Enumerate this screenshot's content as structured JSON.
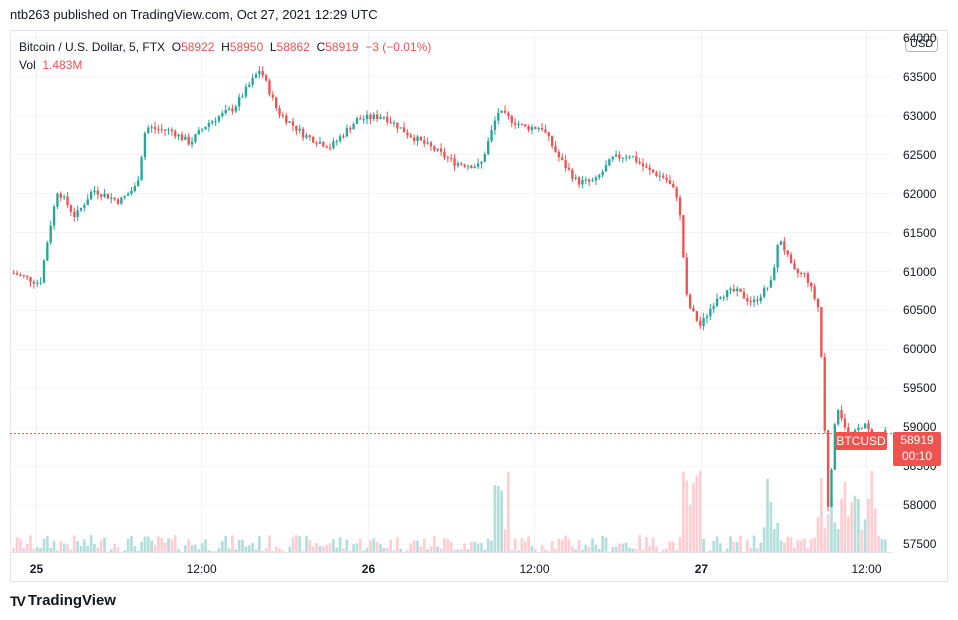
{
  "header": {
    "publish_line": "ntb263 published on TradingView.com, Oct 27, 2021 12:29 UTC"
  },
  "legend": {
    "symbol": "Bitcoin / U.S. Dollar, 5, FTX",
    "open_label": "O",
    "open": "58922",
    "high_label": "H",
    "high": "58950",
    "low_label": "L",
    "low": "58862",
    "close_label": "C",
    "close": "58919",
    "change": "−3 (−0.01%)",
    "vol_label": "Vol",
    "vol": "1.483M"
  },
  "price_axis": {
    "currency": "USD"
  },
  "last_price_tag": {
    "symbol": "BTCUSD",
    "price": "58919",
    "countdown": "00:10"
  },
  "footer": {
    "brand": "TradingView",
    "logo": "TV"
  },
  "colors": {
    "up": "#26a69a",
    "down": "#ef5350",
    "grid": "#f0f3fa",
    "vol_up": "#b2dfdb",
    "vol_down": "#ffcdd2"
  },
  "chart_data": {
    "type": "candlestick",
    "title": "Bitcoin / U.S. Dollar, 5, FTX",
    "ylim": [
      57400,
      64100
    ],
    "yticks": [
      57500,
      58000,
      58500,
      59000,
      59500,
      60000,
      60500,
      61000,
      61500,
      62000,
      62500,
      63000,
      63500,
      64000
    ],
    "xticks": [
      {
        "label": "25",
        "pos": 0.03,
        "bold": true
      },
      {
        "label": "12:00",
        "pos": 0.217,
        "bold": false
      },
      {
        "label": "26",
        "pos": 0.406,
        "bold": true
      },
      {
        "label": "12:00",
        "pos": 0.594,
        "bold": false
      },
      {
        "label": "27",
        "pos": 0.783,
        "bold": true
      },
      {
        "label": "12:00",
        "pos": 0.97,
        "bold": false
      }
    ],
    "last_price": 58919,
    "price_path": [
      [
        0.0,
        60980
      ],
      [
        0.03,
        60850
      ],
      [
        0.04,
        61500
      ],
      [
        0.05,
        62050
      ],
      [
        0.07,
        61700
      ],
      [
        0.09,
        62050
      ],
      [
        0.12,
        61900
      ],
      [
        0.14,
        62100
      ],
      [
        0.15,
        62850
      ],
      [
        0.18,
        62800
      ],
      [
        0.2,
        62650
      ],
      [
        0.22,
        62900
      ],
      [
        0.25,
        63100
      ],
      [
        0.28,
        63600
      ],
      [
        0.3,
        63050
      ],
      [
        0.33,
        62750
      ],
      [
        0.36,
        62600
      ],
      [
        0.39,
        62950
      ],
      [
        0.42,
        63000
      ],
      [
        0.45,
        62750
      ],
      [
        0.48,
        62550
      ],
      [
        0.5,
        62400
      ],
      [
        0.53,
        62350
      ],
      [
        0.55,
        63050
      ],
      [
        0.58,
        62850
      ],
      [
        0.6,
        62850
      ],
      [
        0.62,
        62450
      ],
      [
        0.64,
        62150
      ],
      [
        0.66,
        62150
      ],
      [
        0.68,
        62450
      ],
      [
        0.7,
        62500
      ],
      [
        0.72,
        62300
      ],
      [
        0.74,
        62200
      ],
      [
        0.755,
        61950
      ],
      [
        0.765,
        60600
      ],
      [
        0.78,
        60300
      ],
      [
        0.8,
        60700
      ],
      [
        0.82,
        60750
      ],
      [
        0.84,
        60600
      ],
      [
        0.86,
        60850
      ],
      [
        0.87,
        61450
      ],
      [
        0.885,
        61000
      ],
      [
        0.9,
        60950
      ],
      [
        0.915,
        60500
      ],
      [
        0.925,
        58000
      ],
      [
        0.935,
        59300
      ],
      [
        0.95,
        58850
      ],
      [
        0.965,
        59050
      ],
      [
        0.98,
        58800
      ],
      [
        0.99,
        58919
      ]
    ]
  }
}
